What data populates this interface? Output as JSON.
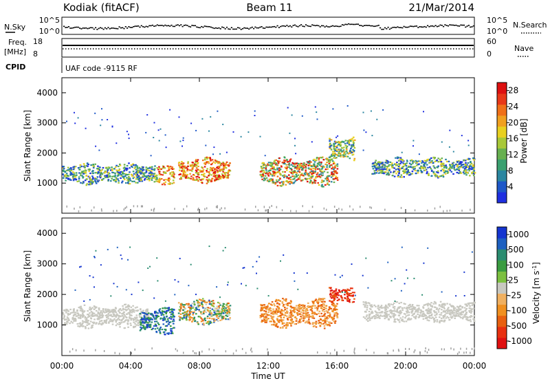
{
  "header": {
    "station": "Kodiak (fitACF)",
    "beam": "Beam 11",
    "date": "21/Mar/2014"
  },
  "strip": {
    "nsky_label": "N.Sky",
    "nsearch_label": "N.Search",
    "exp_10_5": "10^5",
    "exp_10_0": "10^0",
    "freq_label_1": "Freq.",
    "freq_label_2": "[MHz]",
    "freq_ticks": [
      "18",
      "8"
    ],
    "nave_label": "Nave",
    "nave_ticks": [
      "60",
      "0"
    ],
    "cpid_label": "CPID",
    "cpid_text": "UAF code -9115 RF"
  },
  "colors": {
    "power": [
      "#1f2fe0",
      "#1e58c8",
      "#2a86a0",
      "#3aa070",
      "#67b050",
      "#a8c838",
      "#e8d020",
      "#f0a020",
      "#f07018",
      "#e83818",
      "#dd1010"
    ],
    "velocity": [
      "#1535d0",
      "#1e60c0",
      "#2a8c70",
      "#3a9c40",
      "#7cc040",
      "#c8c8c0",
      "#f0b060",
      "#f09020",
      "#e86010",
      "#e83010",
      "#e01010"
    ]
  },
  "chart_data": [
    {
      "type": "heatmap",
      "name": "Power",
      "xlabel": "",
      "ylabel": "Slant Range [km]",
      "xlim": [
        "00:00",
        "24:00"
      ],
      "ylim": [
        0,
        4500
      ],
      "yticks": [
        "1000",
        "2000",
        "3000",
        "4000"
      ],
      "colorbar": {
        "label": "Power [dB]",
        "ticks": [
          "4",
          "8",
          "12",
          "16",
          "20",
          "24",
          "28"
        ],
        "range": [
          0,
          30
        ]
      },
      "echo_regions": [
        {
          "start": "00:00",
          "end": "05:30",
          "range_lo": 950,
          "range_hi": 1700,
          "level": "low-mid"
        },
        {
          "start": "05:30",
          "end": "06:30",
          "range_lo": 950,
          "range_hi": 1600,
          "level": "high"
        },
        {
          "start": "06:45",
          "end": "09:45",
          "range_lo": 1000,
          "range_hi": 1900,
          "level": "high"
        },
        {
          "start": "11:30",
          "end": "16:00",
          "range_lo": 900,
          "range_hi": 1900,
          "level": "mid-high"
        },
        {
          "start": "15:30",
          "end": "17:00",
          "range_lo": 1700,
          "range_hi": 2600,
          "level": "mid"
        },
        {
          "start": "18:00",
          "end": "24:00",
          "range_lo": 1200,
          "range_hi": 1900,
          "level": "low-mid"
        }
      ]
    },
    {
      "type": "heatmap",
      "name": "Velocity",
      "xlabel": "Time UT",
      "ylabel": "Slant Range [km]",
      "xlim": [
        "00:00",
        "24:00"
      ],
      "ylim": [
        0,
        4500
      ],
      "xticks": [
        "00:00",
        "04:00",
        "08:00",
        "12:00",
        "16:00",
        "20:00",
        "00:00"
      ],
      "yticks": [
        "1000",
        "2000",
        "3000",
        "4000"
      ],
      "colorbar": {
        "label": "Velocity [m s^-1]",
        "ticks": [
          "1000",
          "500",
          "100",
          "25",
          "-25",
          "-100",
          "-500",
          "-1000"
        ]
      },
      "echo_regions": [
        {
          "start": "00:00",
          "end": "05:00",
          "range_lo": 900,
          "range_hi": 1700,
          "velocity": "-25 to 25"
        },
        {
          "start": "04:30",
          "end": "06:30",
          "range_lo": 700,
          "range_hi": 1600,
          "velocity": "100 to 1000"
        },
        {
          "start": "06:45",
          "end": "09:45",
          "range_lo": 1000,
          "range_hi": 1900,
          "velocity": "-500 to 500"
        },
        {
          "start": "11:30",
          "end": "16:00",
          "range_lo": 900,
          "range_hi": 1900,
          "velocity": "-500 to -100"
        },
        {
          "start": "15:30",
          "end": "17:00",
          "range_lo": 1700,
          "range_hi": 2300,
          "velocity": "-1000 to -500"
        },
        {
          "start": "17:30",
          "end": "24:00",
          "range_lo": 1100,
          "range_hi": 1800,
          "velocity": "-25 to 25"
        }
      ]
    }
  ]
}
